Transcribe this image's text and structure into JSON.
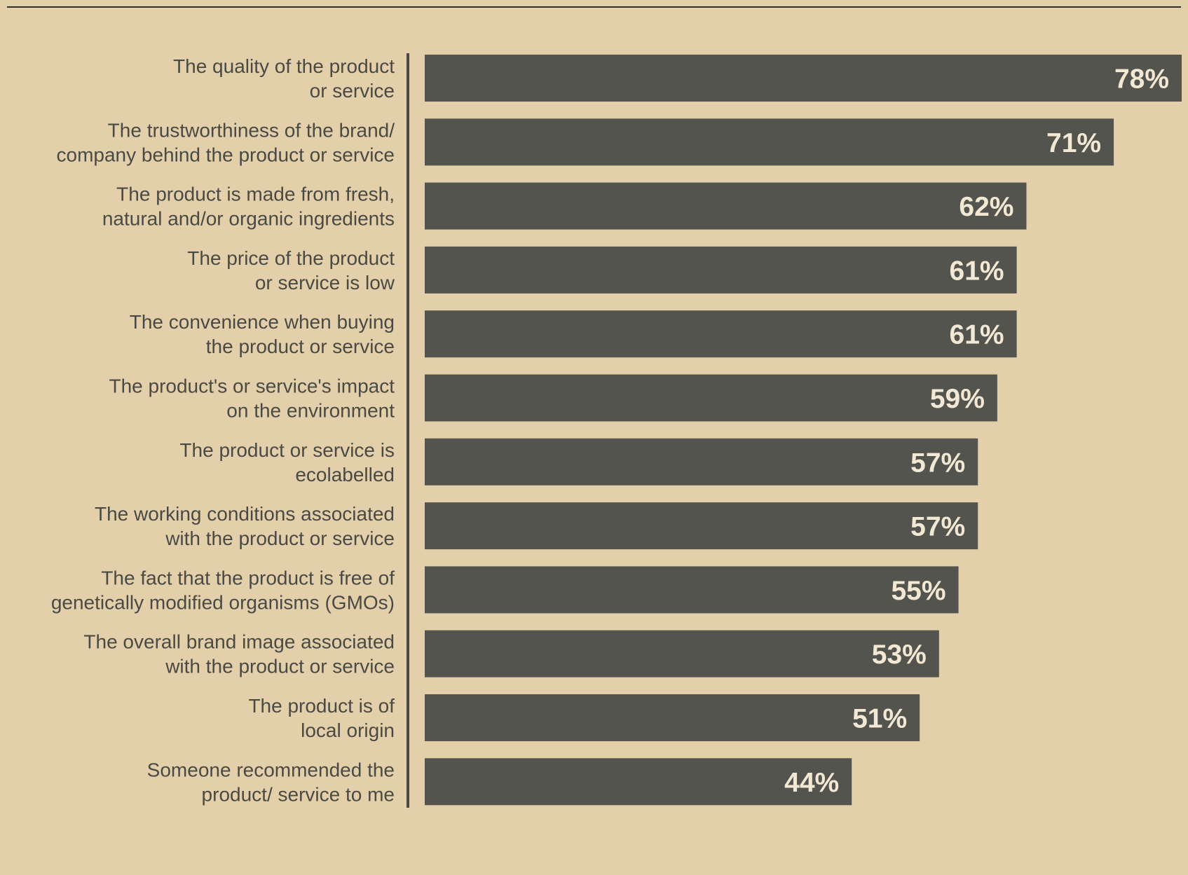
{
  "colors": {
    "background": "#e3d0ab",
    "bar": "#53544e",
    "bar_label": "#f2e8d4",
    "category_text": "#4a4a44",
    "axis": "#4a4a44",
    "top_rule": "#2e2d29"
  },
  "chart_data": {
    "type": "bar",
    "orientation": "horizontal",
    "unit": "%",
    "categories": [
      [
        "The quality of the product",
        "or service"
      ],
      [
        "The trustworthiness of the brand/",
        "company behind the product or service"
      ],
      [
        "The product is made from fresh,",
        "natural and/or organic ingredients"
      ],
      [
        "The price of the product",
        "or service is low"
      ],
      [
        "The convenience when buying",
        "the product or service"
      ],
      [
        "The product's or service's impact",
        "on the environment"
      ],
      [
        "The product or service is",
        "ecolabelled"
      ],
      [
        "The working conditions associated",
        "with the product or service"
      ],
      [
        "The fact that the product is free of",
        "genetically modified organisms (GMOs)"
      ],
      [
        "The overall brand image associated",
        "with the product or service"
      ],
      [
        "The product is of",
        "local origin"
      ],
      [
        "Someone recommended the",
        "product/ service to me"
      ]
    ],
    "values": [
      78,
      71,
      62,
      61,
      61,
      59,
      57,
      57,
      55,
      53,
      51,
      44
    ],
    "value_labels": [
      "78%",
      "71%",
      "62%",
      "61%",
      "61%",
      "59%",
      "57%",
      "57%",
      "55%",
      "53%",
      "51%",
      "44%"
    ],
    "xlim": [
      0,
      78
    ],
    "grid": false,
    "legend": false
  }
}
